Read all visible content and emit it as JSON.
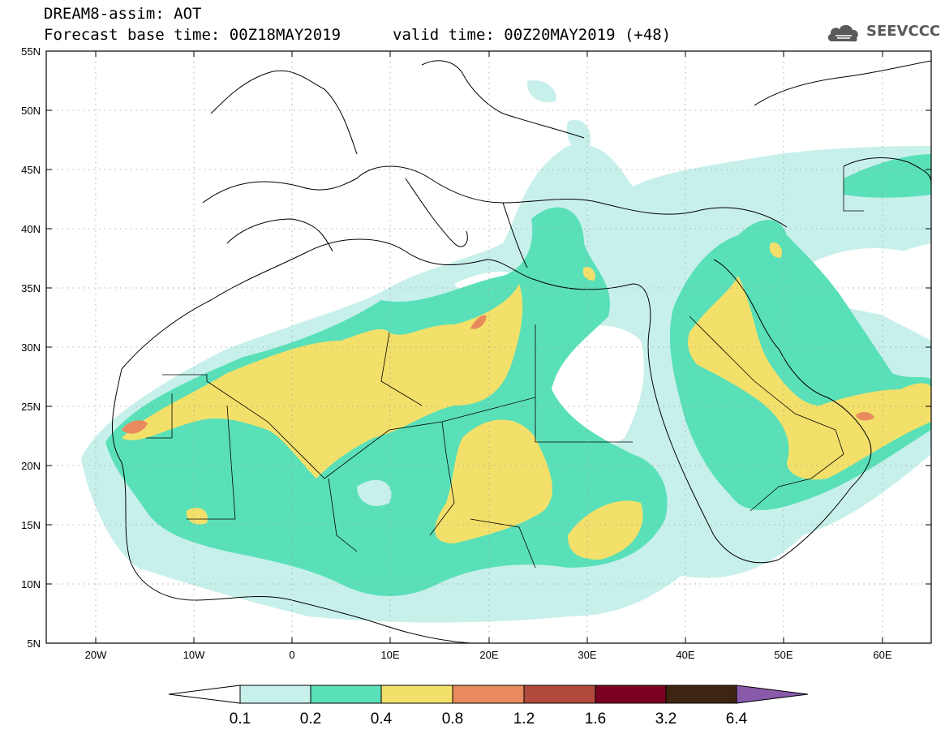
{
  "header": {
    "model_title": "DREAM8-assim: AOT",
    "base_time": "Forecast base time: 00Z18MAY2019",
    "valid_time": "valid time: 00Z20MAY2019 (+48)"
  },
  "logo": {
    "text": "SEEVCCC",
    "icon": "cloud-icon"
  },
  "map": {
    "y_ticks": [
      "55N",
      "50N",
      "45N",
      "40N",
      "35N",
      "30N",
      "25N",
      "20N",
      "15N",
      "10N",
      "5N"
    ],
    "x_ticks": [
      "20W",
      "10W",
      "0",
      "10E",
      "20E",
      "30E",
      "40E",
      "50E",
      "60E"
    ]
  },
  "colorbar": {
    "levels": [
      "0.1",
      "0.2",
      "0.4",
      "0.8",
      "1.2",
      "1.6",
      "3.2",
      "6.4"
    ],
    "colors": [
      "#ffffff",
      "#c8f0ea",
      "#5ae0b8",
      "#f3e06a",
      "#e88a5e",
      "#b04a3c",
      "#7a0022",
      "#3e2512",
      "#8a5aaa"
    ]
  },
  "colors": {
    "level_1": "#c8f0ea",
    "level_2": "#5ae0b8",
    "level_3": "#f3e06a",
    "level_4": "#e88a5e",
    "level_5": "#d46a55"
  }
}
